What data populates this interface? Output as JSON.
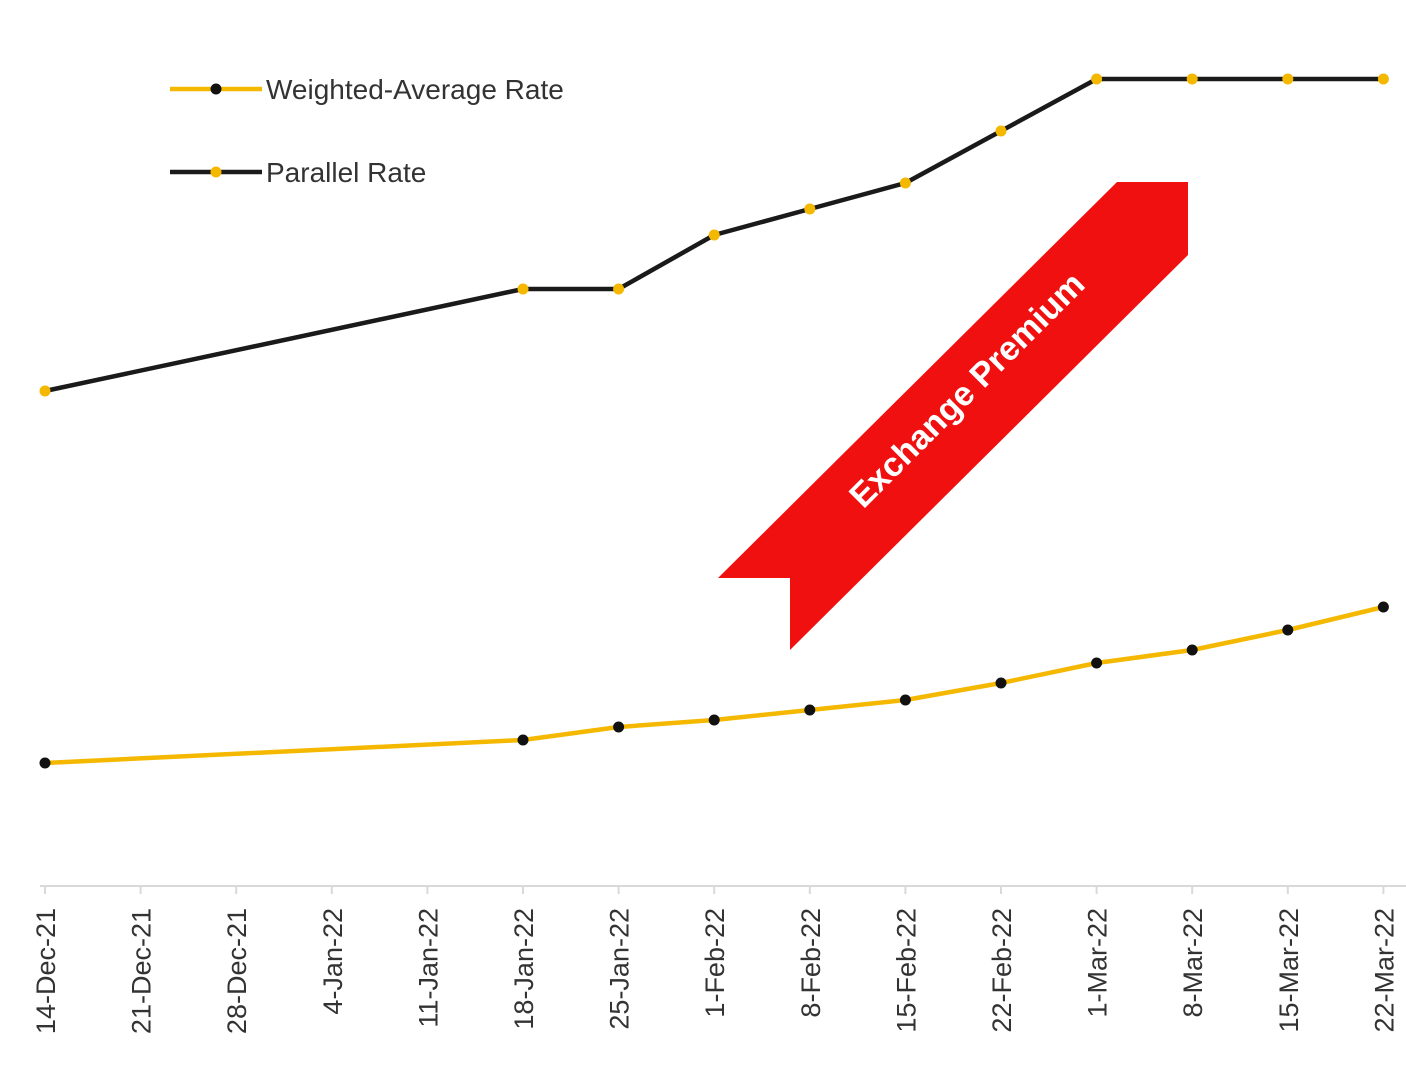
{
  "chart_data": {
    "type": "line",
    "title": "",
    "xlabel": "",
    "ylabel": "",
    "categories": [
      "14-Dec-21",
      "21-Dec-21",
      "28-Dec-21",
      "4-Jan-22",
      "11-Jan-22",
      "18-Jan-22",
      "25-Jan-22",
      "1-Feb-22",
      "8-Feb-22",
      "15-Feb-22",
      "22-Feb-22",
      "1-Mar-22",
      "8-Mar-22",
      "15-Mar-22",
      "22-Mar-22"
    ],
    "ylim": [
      0,
      810
    ],
    "grid": false,
    "y_axis_note": "No y-axis values are shown; values are relative units",
    "legend": {
      "position": "top-left"
    },
    "series": [
      {
        "name": "Weighted-Average Rate",
        "line_color": "#f5b800",
        "marker_color": "#111111",
        "points": [
          {
            "x": "14-Dec-21",
            "y": 123
          },
          {
            "x": "18-Jan-22",
            "y": 146
          },
          {
            "x": "25-Jan-22",
            "y": 159
          },
          {
            "x": "1-Feb-22",
            "y": 166
          },
          {
            "x": "8-Feb-22",
            "y": 176
          },
          {
            "x": "15-Feb-22",
            "y": 186
          },
          {
            "x": "22-Feb-22",
            "y": 203
          },
          {
            "x": "1-Mar-22",
            "y": 223
          },
          {
            "x": "8-Mar-22",
            "y": 236
          },
          {
            "x": "15-Mar-22",
            "y": 256
          },
          {
            "x": "22-Mar-22",
            "y": 279
          }
        ]
      },
      {
        "name": "Parallel Rate",
        "line_color": "#1a1a1a",
        "marker_color": "#f5b800",
        "points": [
          {
            "x": "14-Dec-21",
            "y": 495
          },
          {
            "x": "18-Jan-22",
            "y": 597
          },
          {
            "x": "25-Jan-22",
            "y": 597
          },
          {
            "x": "1-Feb-22",
            "y": 651
          },
          {
            "x": "8-Feb-22",
            "y": 677
          },
          {
            "x": "15-Feb-22",
            "y": 703
          },
          {
            "x": "22-Feb-22",
            "y": 755
          },
          {
            "x": "1-Mar-22",
            "y": 807
          },
          {
            "x": "8-Mar-22",
            "y": 807
          },
          {
            "x": "15-Mar-22",
            "y": 807
          },
          {
            "x": "22-Mar-22",
            "y": 807
          }
        ]
      }
    ],
    "annotations": [
      {
        "text": "Exchange Premium",
        "shape": "arrow",
        "color": "#f01010"
      }
    ]
  }
}
